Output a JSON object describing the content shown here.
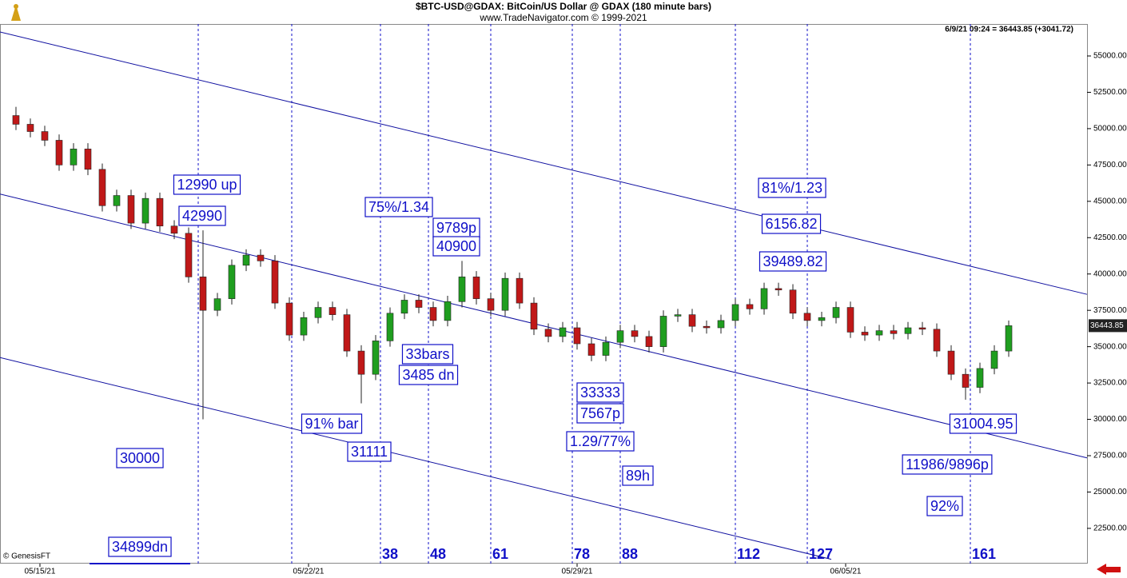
{
  "chart_data": {
    "type": "candlestick",
    "title": "$BTC-USD@GDAX:  BitCoin/US Dollar @ GDAX  (180 minute bars)",
    "subtitle": "www.TradeNavigator.com © 1999-2021",
    "quote": "6/9/21 09:24 = 36443.85 (+3041.72)",
    "last_price": 36443.85,
    "last_price_label": "36443.85",
    "credit": "© GenesisFT",
    "up_color": "#1f9e1f",
    "down_color": "#c01818",
    "x": [
      -38,
      -35,
      -32,
      -29,
      -26,
      -23,
      -20,
      -17,
      -14,
      -11,
      -8,
      -5,
      -2,
      1,
      4,
      7,
      10,
      13,
      16,
      19,
      22,
      25,
      28,
      31,
      34,
      37,
      40,
      43,
      46,
      49,
      52,
      55,
      58,
      61,
      64,
      67,
      70,
      73,
      76,
      79,
      82,
      85,
      88,
      91,
      94,
      97,
      100,
      103,
      106,
      109,
      112,
      115,
      118,
      121,
      124,
      127,
      130,
      133,
      136,
      139,
      142,
      145,
      148,
      151,
      154,
      157,
      160,
      163,
      166,
      169
    ],
    "open": [
      50900,
      50300,
      49800,
      49200,
      47500,
      48600,
      47200,
      44700,
      45400,
      43500,
      45200,
      43300,
      42800,
      39800,
      37500,
      38300,
      40600,
      41300,
      40900,
      38000,
      35800,
      37000,
      37700,
      37200,
      34700,
      33100,
      35400,
      37300,
      38200,
      37700,
      36800,
      38100,
      39800,
      38300,
      37500,
      39700,
      38000,
      36200,
      35700,
      36300,
      35200,
      34400,
      35300,
      36100,
      35700,
      35000,
      37100,
      37200,
      36400,
      36300,
      36800,
      37900,
      37600,
      39000,
      38900,
      37300,
      36800,
      37000,
      37700,
      36000,
      35800,
      36100,
      35900,
      36300,
      36200,
      34700,
      33100,
      32200,
      33500,
      34700
    ],
    "high": [
      51500,
      50700,
      50200,
      49600,
      49000,
      49000,
      47600,
      45800,
      45800,
      45600,
      45600,
      43700,
      43200,
      43000,
      38700,
      41000,
      41700,
      41700,
      41300,
      38400,
      37400,
      38100,
      38100,
      37600,
      35100,
      35800,
      37700,
      38600,
      38600,
      38100,
      38500,
      40900,
      40200,
      38700,
      40100,
      40100,
      38400,
      36600,
      36700,
      36700,
      35600,
      35700,
      36500,
      36500,
      36100,
      37500,
      37600,
      37600,
      36800,
      37200,
      38300,
      38300,
      39400,
      39400,
      39300,
      37700,
      37400,
      38100,
      38100,
      36400,
      36500,
      36500,
      36700,
      36700,
      36600,
      35100,
      33500,
      33900,
      35100,
      36800
    ],
    "low": [
      49900,
      49400,
      48800,
      47100,
      47100,
      46800,
      44300,
      44300,
      43100,
      43100,
      42900,
      42400,
      39400,
      30000,
      37100,
      37900,
      40200,
      40500,
      37600,
      35400,
      35400,
      36600,
      36800,
      34300,
      31100,
      32700,
      35000,
      36900,
      37300,
      36400,
      36400,
      37700,
      37900,
      37100,
      37100,
      37600,
      35800,
      35300,
      35300,
      34800,
      34000,
      34000,
      34900,
      35300,
      34600,
      34600,
      36700,
      36000,
      35900,
      35900,
      36400,
      37200,
      37200,
      38500,
      36900,
      36400,
      36400,
      36600,
      35600,
      35400,
      35400,
      35500,
      35500,
      35800,
      34300,
      32700,
      31350,
      31800,
      33100,
      34300
    ],
    "close": [
      50300,
      49800,
      49200,
      47500,
      48600,
      47200,
      44700,
      45400,
      43500,
      45200,
      43300,
      42800,
      39800,
      37500,
      38300,
      40600,
      41300,
      40900,
      38000,
      35800,
      37000,
      37700,
      37200,
      34700,
      33100,
      35400,
      37300,
      38200,
      37700,
      36800,
      38100,
      39800,
      38300,
      37500,
      39700,
      38000,
      36200,
      35700,
      36300,
      35200,
      34400,
      35300,
      36100,
      35700,
      35000,
      37100,
      37200,
      36400,
      36300,
      36800,
      37900,
      37600,
      39000,
      38900,
      37300,
      36800,
      37000,
      37700,
      36000,
      35800,
      36100,
      35900,
      36300,
      36200,
      34700,
      33100,
      32200,
      33500,
      34700,
      36443.85
    ],
    "xlim": [
      -41.33,
      185.33
    ],
    "ylim": [
      20075,
      57200
    ],
    "xticks": [
      {
        "value": -33,
        "label": "05/15/21"
      },
      {
        "value": 23,
        "label": "05/22/21"
      },
      {
        "value": 79,
        "label": "05/29/21"
      },
      {
        "value": 135,
        "label": "06/05/21"
      }
    ],
    "yticks": [
      {
        "value": 22500,
        "label": "22500.00"
      },
      {
        "value": 25000,
        "label": "25000.00"
      },
      {
        "value": 27500,
        "label": "27500.00"
      },
      {
        "value": 30000,
        "label": "30000.00"
      },
      {
        "value": 32500,
        "label": "32500.00"
      },
      {
        "value": 35000,
        "label": "35000.00"
      },
      {
        "value": 37500,
        "label": "37500.00"
      },
      {
        "value": 40000,
        "label": "40000.00"
      },
      {
        "value": 42500,
        "label": "42500.00"
      },
      {
        "value": 45000,
        "label": "45000.00"
      },
      {
        "value": 47500,
        "label": "47500.00"
      },
      {
        "value": 50000,
        "label": "50000.00"
      },
      {
        "value": 52500,
        "label": "52500.00"
      },
      {
        "value": 55000,
        "label": "55000.00"
      }
    ],
    "trendlines": [
      {
        "x": [
          -41.33,
          185.33
        ],
        "y": [
          56650,
          38600
        ]
      },
      {
        "x": [
          -41.33,
          185.33
        ],
        "y": [
          45500,
          27350
        ]
      },
      {
        "x": [
          -41.33,
          132
        ],
        "y": [
          34250,
          20370
        ]
      }
    ],
    "cycle_marks": [
      38,
      48,
      61,
      78,
      88,
      112,
      127,
      161
    ],
    "annotations": [
      "12990 up",
      "42990",
      "75%/1.34",
      "9789p",
      "40900",
      "81%/1.23",
      "6156.82",
      "39489.82",
      "33bars",
      "3485 dn",
      "91% bar",
      "31111",
      "33333",
      "7567p",
      "1.29/77%",
      "89h",
      "30000",
      "31004.95",
      "11986/9896p",
      "92%",
      "34899dn"
    ]
  }
}
